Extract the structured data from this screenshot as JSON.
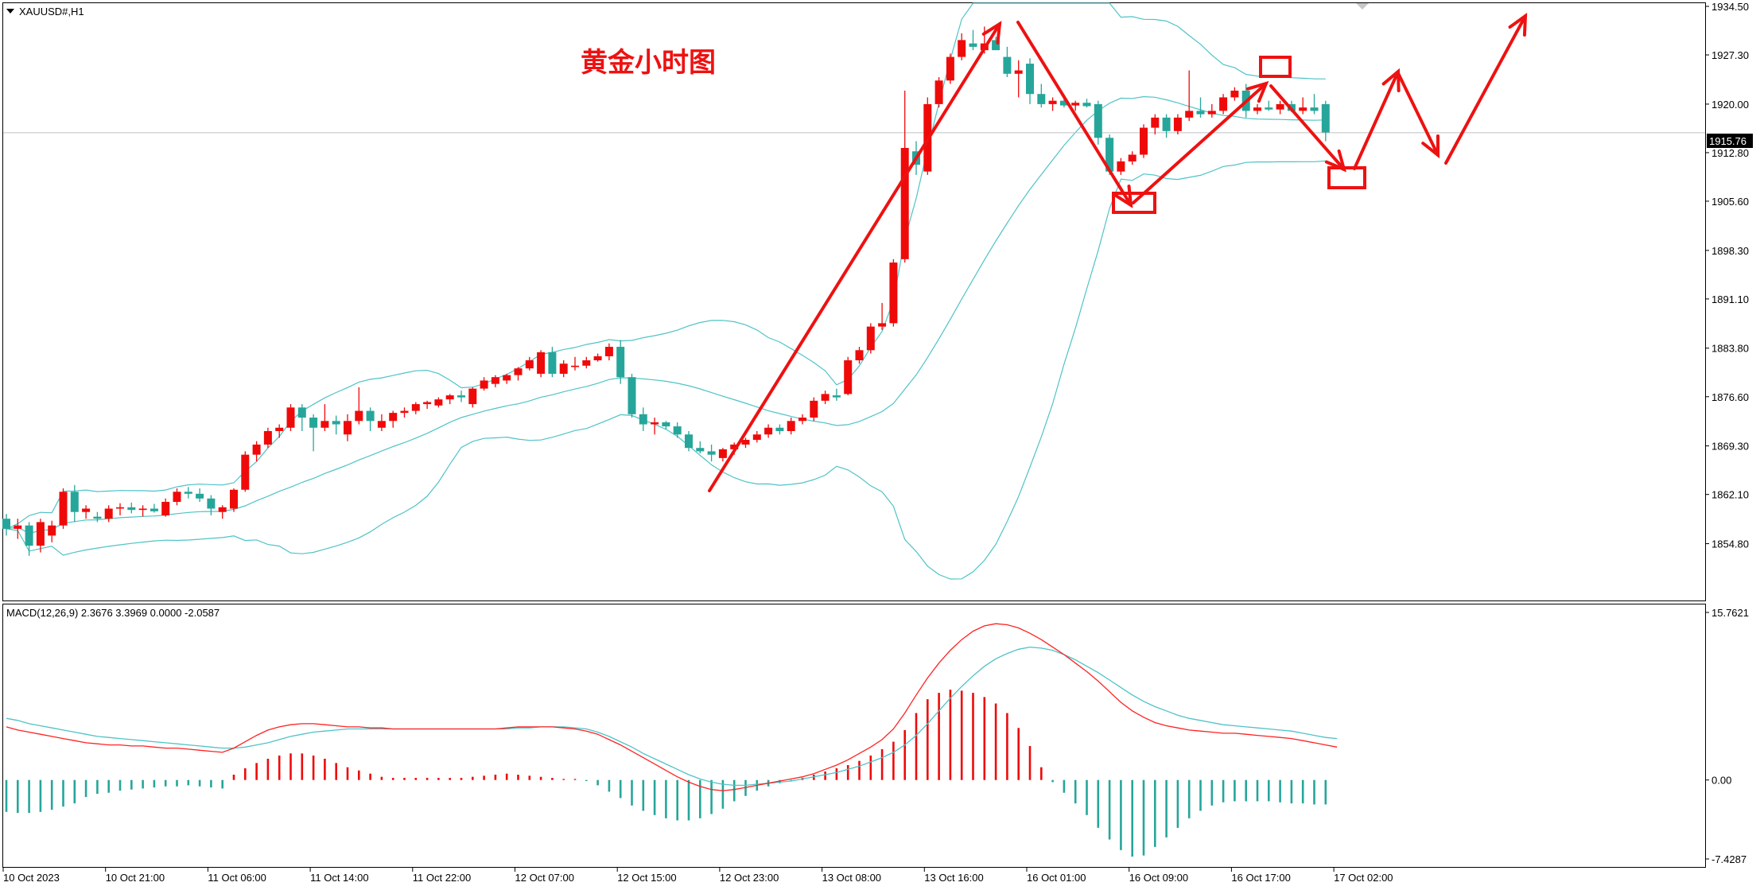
{
  "chart_title": "XAUUSD#,H1",
  "annotation_title": "黄金小时图",
  "current_price_label": "1915.76",
  "macd_label": "MACD(12,26,9) 2.3676 3.3969 0.0000 -2.0587",
  "colors": {
    "bull": "#ef0a0a",
    "bear": "#26a69a",
    "band": "#4fc3c7",
    "macd_line": "#ff2222",
    "signal_line": "#4fc3c7",
    "annotation": "#ee1111",
    "axis": "#000000"
  },
  "chart_data": [
    {
      "type": "candlestick",
      "title": "XAUUSD#,H1",
      "ylim": [
        1850.5,
        1934.5
      ],
      "y_ticks": [
        "1934.50",
        "1927.30",
        "1920.00",
        "1912.80",
        "1905.60",
        "1898.30",
        "1891.10",
        "1883.80",
        "1876.60",
        "1869.30",
        "1862.10",
        "1854.80"
      ],
      "y_tick_values": [
        1934.5,
        1927.3,
        1920.0,
        1912.8,
        1905.6,
        1898.3,
        1891.1,
        1883.8,
        1876.6,
        1869.3,
        1862.1,
        1854.8
      ],
      "x_ticks": [
        "10 Oct 2023",
        "10 Oct 21:00",
        "11 Oct 06:00",
        "11 Oct 14:00",
        "11 Oct 22:00",
        "12 Oct 07:00",
        "12 Oct 15:00",
        "12 Oct 23:00",
        "13 Oct 08:00",
        "13 Oct 16:00",
        "16 Oct 01:00",
        "16 Oct 09:00",
        "16 Oct 17:00",
        "17 Oct 02:00"
      ],
      "x_tick_index": [
        0,
        9,
        18,
        27,
        36,
        45,
        54,
        63,
        72,
        81,
        90,
        99,
        108,
        117
      ],
      "current_price": 1915.76,
      "ohlc": [
        [
          1858.5,
          1859.2,
          1856.0,
          1857.0
        ],
        [
          1857.0,
          1858.5,
          1855.5,
          1857.5
        ],
        [
          1857.5,
          1858.0,
          1853.0,
          1854.5
        ],
        [
          1854.5,
          1858.5,
          1853.5,
          1858.0
        ],
        [
          1856.0,
          1858.2,
          1855.0,
          1857.5
        ],
        [
          1857.5,
          1863.0,
          1857.0,
          1862.5
        ],
        [
          1862.5,
          1863.5,
          1858.0,
          1859.5
        ],
        [
          1859.5,
          1860.5,
          1858.5,
          1860.0
        ],
        [
          1858.8,
          1859.5,
          1858.0,
          1858.5
        ],
        [
          1858.5,
          1860.5,
          1858.0,
          1860.0
        ],
        [
          1860.0,
          1860.8,
          1859.0,
          1860.2
        ],
        [
          1860.2,
          1860.9,
          1859.3,
          1859.8
        ],
        [
          1859.8,
          1860.5,
          1858.8,
          1860.0
        ],
        [
          1860.0,
          1860.7,
          1859.4,
          1859.6
        ],
        [
          1859.0,
          1861.5,
          1858.8,
          1861.0
        ],
        [
          1861.0,
          1863.0,
          1860.5,
          1862.5
        ],
        [
          1862.5,
          1863.2,
          1861.5,
          1862.2
        ],
        [
          1862.2,
          1863.0,
          1861.0,
          1861.5
        ],
        [
          1861.5,
          1862.0,
          1859.0,
          1860.0
        ],
        [
          1859.5,
          1860.5,
          1858.5,
          1860.2
        ],
        [
          1860.0,
          1863.0,
          1859.5,
          1862.8
        ],
        [
          1862.8,
          1868.5,
          1862.5,
          1868.0
        ],
        [
          1868.0,
          1870.0,
          1867.0,
          1869.5
        ],
        [
          1869.5,
          1872.0,
          1869.0,
          1871.5
        ],
        [
          1871.5,
          1872.5,
          1870.5,
          1872.0
        ],
        [
          1872.0,
          1875.5,
          1871.5,
          1875.0
        ],
        [
          1875.0,
          1875.5,
          1871.5,
          1873.5
        ],
        [
          1873.5,
          1874.0,
          1868.5,
          1872.0
        ],
        [
          1872.0,
          1875.5,
          1871.5,
          1873.0
        ],
        [
          1873.0,
          1873.8,
          1871.0,
          1872.5
        ],
        [
          1871.0,
          1874.0,
          1870.0,
          1873.0
        ],
        [
          1873.0,
          1878.0,
          1872.5,
          1874.5
        ],
        [
          1874.5,
          1875.0,
          1871.5,
          1873.0
        ],
        [
          1872.0,
          1874.0,
          1871.5,
          1873.0
        ],
        [
          1873.0,
          1874.5,
          1872.0,
          1874.2
        ],
        [
          1874.2,
          1875.0,
          1873.5,
          1874.5
        ],
        [
          1874.5,
          1875.8,
          1874.0,
          1875.5
        ],
        [
          1875.5,
          1876.0,
          1874.8,
          1875.8
        ],
        [
          1875.3,
          1876.5,
          1875.0,
          1876.2
        ],
        [
          1876.2,
          1877.0,
          1875.5,
          1876.8
        ],
        [
          1876.8,
          1877.5,
          1875.8,
          1876.5
        ],
        [
          1875.5,
          1878.0,
          1875.0,
          1877.8
        ],
        [
          1877.8,
          1879.5,
          1877.5,
          1879.0
        ],
        [
          1878.5,
          1879.8,
          1878.0,
          1879.5
        ],
        [
          1879.0,
          1880.0,
          1878.5,
          1879.8
        ],
        [
          1879.8,
          1881.0,
          1879.0,
          1880.8
        ],
        [
          1880.8,
          1882.5,
          1880.5,
          1882.0
        ],
        [
          1880.0,
          1883.5,
          1879.5,
          1883.2
        ],
        [
          1883.2,
          1884.0,
          1879.5,
          1880.0
        ],
        [
          1880.0,
          1882.0,
          1879.5,
          1881.5
        ],
        [
          1881.0,
          1882.5,
          1880.5,
          1881.2
        ],
        [
          1881.2,
          1882.5,
          1880.8,
          1882.0
        ],
        [
          1882.0,
          1883.0,
          1881.8,
          1882.6
        ],
        [
          1882.6,
          1884.5,
          1882.0,
          1884.0
        ],
        [
          1884.0,
          1885.0,
          1878.5,
          1879.5
        ],
        [
          1879.5,
          1880.0,
          1873.5,
          1874.0
        ],
        [
          1874.0,
          1875.0,
          1871.5,
          1872.5
        ],
        [
          1872.5,
          1873.5,
          1871.0,
          1872.8
        ],
        [
          1872.8,
          1873.0,
          1871.8,
          1872.2
        ],
        [
          1872.2,
          1872.8,
          1870.5,
          1871.0
        ],
        [
          1871.0,
          1871.5,
          1868.5,
          1869.0
        ],
        [
          1869.0,
          1870.0,
          1868.2,
          1868.5
        ],
        [
          1868.5,
          1869.5,
          1867.0,
          1868.0
        ],
        [
          1867.5,
          1869.0,
          1867.0,
          1868.8
        ],
        [
          1868.8,
          1869.8,
          1868.0,
          1869.5
        ],
        [
          1869.5,
          1870.5,
          1869.0,
          1870.2
        ],
        [
          1870.2,
          1871.5,
          1869.8,
          1871.0
        ],
        [
          1871.0,
          1872.5,
          1870.5,
          1872.0
        ],
        [
          1872.0,
          1872.5,
          1871.0,
          1871.5
        ],
        [
          1871.5,
          1873.5,
          1871.0,
          1873.0
        ],
        [
          1873.0,
          1874.0,
          1872.5,
          1873.5
        ],
        [
          1873.5,
          1876.5,
          1873.0,
          1876.0
        ],
        [
          1876.0,
          1877.5,
          1875.5,
          1877.0
        ],
        [
          1876.8,
          1877.8,
          1876.0,
          1876.5
        ],
        [
          1877.0,
          1882.5,
          1876.8,
          1882.0
        ],
        [
          1882.0,
          1884.0,
          1881.5,
          1883.5
        ],
        [
          1883.5,
          1887.5,
          1883.0,
          1887.0
        ],
        [
          1887.0,
          1890.5,
          1886.5,
          1887.5
        ],
        [
          1887.5,
          1897.0,
          1887.0,
          1896.5
        ],
        [
          1897.0,
          1922.0,
          1896.5,
          1913.5
        ],
        [
          1913.0,
          1914.5,
          1909.5,
          1911.0
        ],
        [
          1910.0,
          1921.0,
          1909.5,
          1920.0
        ],
        [
          1920.0,
          1924.0,
          1919.5,
          1923.5
        ],
        [
          1923.5,
          1927.5,
          1923.0,
          1927.0
        ],
        [
          1927.0,
          1930.5,
          1926.5,
          1929.5
        ],
        [
          1929.0,
          1931.0,
          1928.0,
          1928.5
        ],
        [
          1928.0,
          1931.5,
          1927.5,
          1929.0
        ],
        [
          1929.5,
          1930.0,
          1928.0,
          1928.0
        ],
        [
          1927.0,
          1928.5,
          1924.0,
          1924.5
        ],
        [
          1924.5,
          1926.5,
          1921.0,
          1925.0
        ],
        [
          1926.0,
          1926.8,
          1920.0,
          1921.5
        ],
        [
          1921.5,
          1923.0,
          1919.5,
          1920.0
        ],
        [
          1920.0,
          1921.0,
          1919.0,
          1920.5
        ],
        [
          1920.5,
          1921.0,
          1919.5,
          1919.8
        ],
        [
          1919.8,
          1920.5,
          1919.0,
          1920.2
        ],
        [
          1920.2,
          1920.8,
          1919.5,
          1919.7
        ],
        [
          1920.0,
          1920.5,
          1914.0,
          1915.0
        ],
        [
          1915.0,
          1915.5,
          1909.5,
          1910.0
        ],
        [
          1910.0,
          1912.0,
          1909.5,
          1911.5
        ],
        [
          1911.5,
          1913.0,
          1911.0,
          1912.5
        ],
        [
          1912.5,
          1917.0,
          1912.0,
          1916.5
        ],
        [
          1916.5,
          1918.5,
          1915.5,
          1918.0
        ],
        [
          1918.0,
          1918.5,
          1915.0,
          1916.0
        ],
        [
          1916.0,
          1918.5,
          1915.5,
          1918.0
        ],
        [
          1918.0,
          1925.0,
          1917.5,
          1919.0
        ],
        [
          1919.0,
          1921.0,
          1918.0,
          1918.5
        ],
        [
          1918.5,
          1920.0,
          1918.0,
          1919.0
        ],
        [
          1919.0,
          1921.5,
          1918.5,
          1921.0
        ],
        [
          1921.0,
          1922.5,
          1920.5,
          1922.0
        ],
        [
          1922.0,
          1923.0,
          1918.0,
          1919.0
        ],
        [
          1919.0,
          1920.0,
          1918.5,
          1919.5
        ],
        [
          1919.5,
          1920.5,
          1919.0,
          1919.2
        ],
        [
          1919.2,
          1920.5,
          1918.5,
          1920.0
        ],
        [
          1920.0,
          1920.5,
          1918.8,
          1919.0
        ],
        [
          1919.0,
          1921.0,
          1918.5,
          1919.5
        ],
        [
          1919.5,
          1921.5,
          1918.5,
          1919.0
        ],
        [
          1920.0,
          1920.5,
          1914.5,
          1915.8
        ]
      ]
    },
    {
      "type": "macd",
      "title": "MACD(12,26,9) 2.3676 3.3969 0.0000 -2.0587",
      "ylim": [
        -7.4287,
        15.7621
      ],
      "y_ticks": [
        "15.7621",
        "0.00",
        "-7.4287"
      ],
      "y_tick_values": [
        15.7621,
        0.0,
        -7.4287
      ],
      "histogram_start": 0,
      "histogram": [
        -3.0,
        -3.1,
        -3.1,
        -3.0,
        -2.8,
        -2.5,
        -2.2,
        -1.6,
        -1.3,
        -1.2,
        -1.0,
        -0.9,
        -0.8,
        -0.7,
        -0.6,
        -0.6,
        -0.5,
        -0.6,
        -0.7,
        -0.8,
        0.5,
        1.1,
        1.6,
        2.0,
        2.3,
        2.5,
        2.5,
        2.3,
        2.0,
        1.6,
        1.2,
        0.9,
        0.6,
        0.3,
        0.2,
        0.2,
        0.2,
        0.2,
        0.2,
        0.2,
        0.2,
        0.3,
        0.4,
        0.5,
        0.6,
        0.5,
        0.4,
        0.3,
        0.2,
        0.1,
        0.1,
        -0.1,
        -0.5,
        -1.1,
        -1.7,
        -2.4,
        -2.9,
        -3.3,
        -3.6,
        -3.8,
        -3.8,
        -3.6,
        -3.2,
        -2.7,
        -2.0,
        -1.5,
        -1.0,
        -0.6,
        -0.3,
        -0.1,
        0.2,
        0.5,
        0.8,
        1.1,
        1.4,
        1.8,
        2.3,
        2.9,
        3.6,
        4.7,
        6.3,
        7.6,
        8.2,
        8.5,
        8.4,
        8.2,
        7.8,
        7.2,
        6.3,
        4.9,
        3.2,
        1.2,
        -0.2,
        -1.2,
        -2.2,
        -3.3,
        -4.5,
        -5.6,
        -6.6,
        -7.2,
        -7.1,
        -6.3,
        -5.4,
        -4.5,
        -3.6,
        -2.9,
        -2.4,
        -2.1,
        -2.0,
        -2.0,
        -2.0,
        -2.0,
        -2.1,
        -2.2,
        -2.2,
        -2.3,
        -2.3
      ],
      "macd_line": [
        5.0,
        4.7,
        4.5,
        4.3,
        4.1,
        3.9,
        3.7,
        3.5,
        3.4,
        3.3,
        3.3,
        3.2,
        3.2,
        3.1,
        3.0,
        3.0,
        2.9,
        2.8,
        2.7,
        2.6,
        3.0,
        3.6,
        4.2,
        4.7,
        5.0,
        5.2,
        5.3,
        5.3,
        5.2,
        5.1,
        5.0,
        5.0,
        4.9,
        4.9,
        4.8,
        4.8,
        4.8,
        4.8,
        4.8,
        4.8,
        4.8,
        4.8,
        4.8,
        4.8,
        4.9,
        5.0,
        5.0,
        5.0,
        5.0,
        4.9,
        4.8,
        4.6,
        4.3,
        3.8,
        3.3,
        2.7,
        2.1,
        1.5,
        0.9,
        0.3,
        -0.2,
        -0.6,
        -0.9,
        -1.0,
        -0.9,
        -0.7,
        -0.5,
        -0.3,
        -0.1,
        0.1,
        0.3,
        0.6,
        1.0,
        1.4,
        1.9,
        2.5,
        3.1,
        3.8,
        4.8,
        6.3,
        8.0,
        9.6,
        11.0,
        12.2,
        13.2,
        14.0,
        14.5,
        14.7,
        14.6,
        14.3,
        13.8,
        13.2,
        12.5,
        11.8,
        11.0,
        10.2,
        9.3,
        8.3,
        7.3,
        6.5,
        5.9,
        5.4,
        5.1,
        4.9,
        4.7,
        4.6,
        4.5,
        4.4,
        4.4,
        4.3,
        4.2,
        4.1,
        4.0,
        3.9,
        3.7,
        3.5,
        3.3,
        3.1
      ],
      "signal_line": [
        5.8,
        5.6,
        5.3,
        5.1,
        4.9,
        4.7,
        4.5,
        4.3,
        4.1,
        4.0,
        3.9,
        3.8,
        3.7,
        3.6,
        3.5,
        3.4,
        3.3,
        3.2,
        3.1,
        3.0,
        3.0,
        3.1,
        3.3,
        3.5,
        3.8,
        4.1,
        4.3,
        4.5,
        4.6,
        4.7,
        4.8,
        4.8,
        4.8,
        4.8,
        4.8,
        4.8,
        4.8,
        4.8,
        4.8,
        4.8,
        4.8,
        4.8,
        4.8,
        4.8,
        4.8,
        4.9,
        4.9,
        5.0,
        5.0,
        5.0,
        4.9,
        4.8,
        4.5,
        4.1,
        3.6,
        3.1,
        2.5,
        2.0,
        1.5,
        1.0,
        0.5,
        0.1,
        -0.2,
        -0.4,
        -0.5,
        -0.5,
        -0.4,
        -0.3,
        -0.2,
        -0.1,
        0.1,
        0.3,
        0.5,
        0.7,
        1.0,
        1.3,
        1.7,
        2.1,
        2.6,
        3.3,
        4.2,
        5.3,
        6.5,
        7.7,
        8.8,
        9.8,
        10.7,
        11.4,
        11.9,
        12.3,
        12.5,
        12.4,
        12.2,
        11.8,
        11.3,
        10.7,
        10.1,
        9.4,
        8.7,
        8.0,
        7.4,
        6.9,
        6.5,
        6.1,
        5.8,
        5.6,
        5.4,
        5.2,
        5.1,
        5.0,
        4.9,
        4.8,
        4.7,
        4.6,
        4.4,
        4.2,
        4.0,
        3.9
      ]
    }
  ]
}
